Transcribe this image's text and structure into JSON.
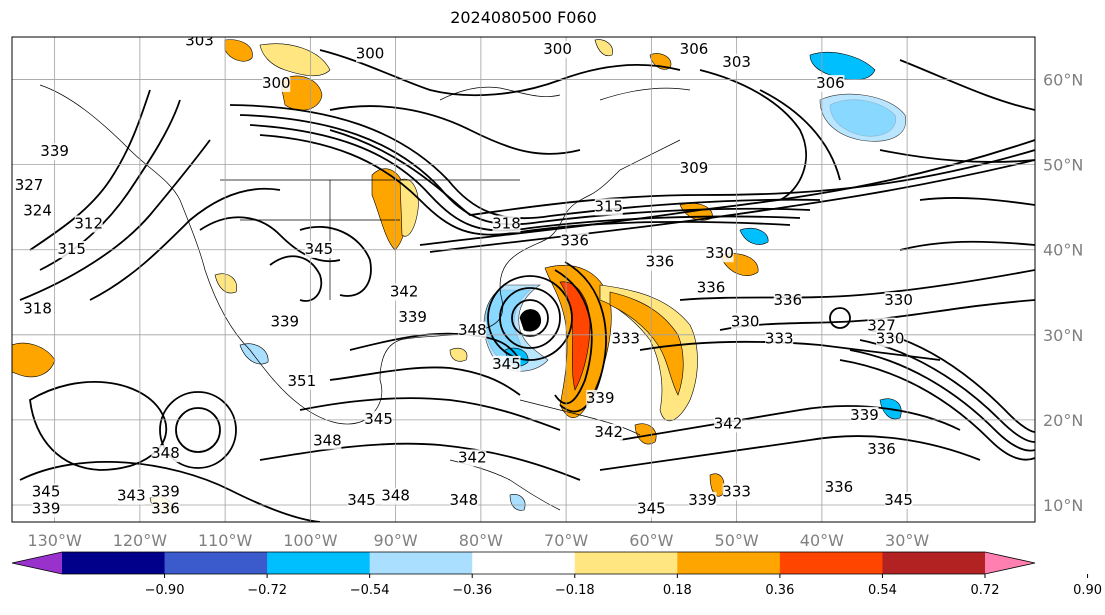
{
  "title": "2024080500 F060",
  "map": {
    "projection": "plate-carree",
    "lon_range": [
      -135,
      -15
    ],
    "lat_range": [
      8,
      65
    ],
    "lon_labels": [
      "130°W",
      "120°W",
      "110°W",
      "100°W",
      "90°W",
      "80°W",
      "70°W",
      "60°W",
      "50°W",
      "40°W",
      "30°W"
    ],
    "lon_values": [
      -130,
      -120,
      -110,
      -100,
      -90,
      -80,
      -70,
      -60,
      -50,
      -40,
      -30
    ],
    "lat_labels": [
      "10°N",
      "20°N",
      "30°N",
      "40°N",
      "50°N",
      "60°N"
    ],
    "lat_values": [
      10,
      20,
      30,
      40,
      50,
      60
    ],
    "grid_color": "#a0a0a0",
    "contour_labels": [
      {
        "text": "303",
        "lon": -113,
        "lat": 64
      },
      {
        "text": "300",
        "lon": -93,
        "lat": 62.5
      },
      {
        "text": "300",
        "lon": -104,
        "lat": 59
      },
      {
        "text": "300",
        "lon": -71,
        "lat": 63
      },
      {
        "text": "306",
        "lon": -55,
        "lat": 63
      },
      {
        "text": "303",
        "lon": -50,
        "lat": 61.5
      },
      {
        "text": "306",
        "lon": -39,
        "lat": 59
      },
      {
        "text": "309",
        "lon": -55,
        "lat": 49
      },
      {
        "text": "315",
        "lon": -65,
        "lat": 44.5
      },
      {
        "text": "318",
        "lon": -77,
        "lat": 42.5
      },
      {
        "text": "336",
        "lon": -69,
        "lat": 40.5
      },
      {
        "text": "330",
        "lon": -52,
        "lat": 39
      },
      {
        "text": "336",
        "lon": -59,
        "lat": 38
      },
      {
        "text": "336",
        "lon": -53,
        "lat": 35
      },
      {
        "text": "336",
        "lon": -44,
        "lat": 33.5
      },
      {
        "text": "330",
        "lon": -31,
        "lat": 33.5
      },
      {
        "text": "327",
        "lon": -33,
        "lat": 30.5
      },
      {
        "text": "330",
        "lon": -32,
        "lat": 29
      },
      {
        "text": "333",
        "lon": -45,
        "lat": 29
      },
      {
        "text": "330",
        "lon": -49,
        "lat": 31
      },
      {
        "text": "333",
        "lon": -63,
        "lat": 29
      },
      {
        "text": "339",
        "lon": -66,
        "lat": 22
      },
      {
        "text": "342",
        "lon": -51,
        "lat": 19
      },
      {
        "text": "339",
        "lon": -35,
        "lat": 20
      },
      {
        "text": "336",
        "lon": -33,
        "lat": 16
      },
      {
        "text": "336",
        "lon": -38,
        "lat": 11.5
      },
      {
        "text": "345",
        "lon": -31,
        "lat": 10
      },
      {
        "text": "333",
        "lon": -50,
        "lat": 11
      },
      {
        "text": "339",
        "lon": -54,
        "lat": 10
      },
      {
        "text": "345",
        "lon": -60,
        "lat": 9
      },
      {
        "text": "342",
        "lon": -65,
        "lat": 18
      },
      {
        "text": "342",
        "lon": -81,
        "lat": 15
      },
      {
        "text": "348",
        "lon": -82,
        "lat": 10
      },
      {
        "text": "348",
        "lon": -90,
        "lat": 10.5
      },
      {
        "text": "345",
        "lon": -94,
        "lat": 10
      },
      {
        "text": "345",
        "lon": -92,
        "lat": 19.5
      },
      {
        "text": "348",
        "lon": -117,
        "lat": 15.5
      },
      {
        "text": "343",
        "lon": -121,
        "lat": 10.5
      },
      {
        "text": "339",
        "lon": -117,
        "lat": 11
      },
      {
        "text": "336",
        "lon": -117,
        "lat": 9
      },
      {
        "text": "345",
        "lon": -131,
        "lat": 11
      },
      {
        "text": "339",
        "lon": -131,
        "lat": 9
      },
      {
        "text": "348",
        "lon": -98,
        "lat": 17
      },
      {
        "text": "351",
        "lon": -101,
        "lat": 24
      },
      {
        "text": "339",
        "lon": -103,
        "lat": 31
      },
      {
        "text": "339",
        "lon": -88,
        "lat": 31.5
      },
      {
        "text": "342",
        "lon": -89,
        "lat": 34.5
      },
      {
        "text": "348",
        "lon": -81,
        "lat": 30
      },
      {
        "text": "345",
        "lon": -77,
        "lat": 26
      },
      {
        "text": "345",
        "lon": -99,
        "lat": 39.5
      },
      {
        "text": "318",
        "lon": -132,
        "lat": 32.5
      },
      {
        "text": "315",
        "lon": -128,
        "lat": 39.5
      },
      {
        "text": "312",
        "lon": -126,
        "lat": 42.5
      },
      {
        "text": "324",
        "lon": -132,
        "lat": 44
      },
      {
        "text": "327",
        "lon": -133,
        "lat": 47
      },
      {
        "text": "339",
        "lon": -130,
        "lat": 51
      }
    ]
  },
  "colorbar": {
    "ticks": [
      "−0.90",
      "−0.72",
      "−0.54",
      "−0.36",
      "−0.18",
      "0.18",
      "0.36",
      "0.54",
      "0.72",
      "0.90"
    ],
    "colors": [
      "#9932cc",
      "#00008b",
      "#3b5bcc",
      "#00bfff",
      "#aadfff",
      "#ffffff",
      "#ffe680",
      "#ffa500",
      "#ff4500",
      "#b22222",
      "#ff80b0"
    ]
  }
}
